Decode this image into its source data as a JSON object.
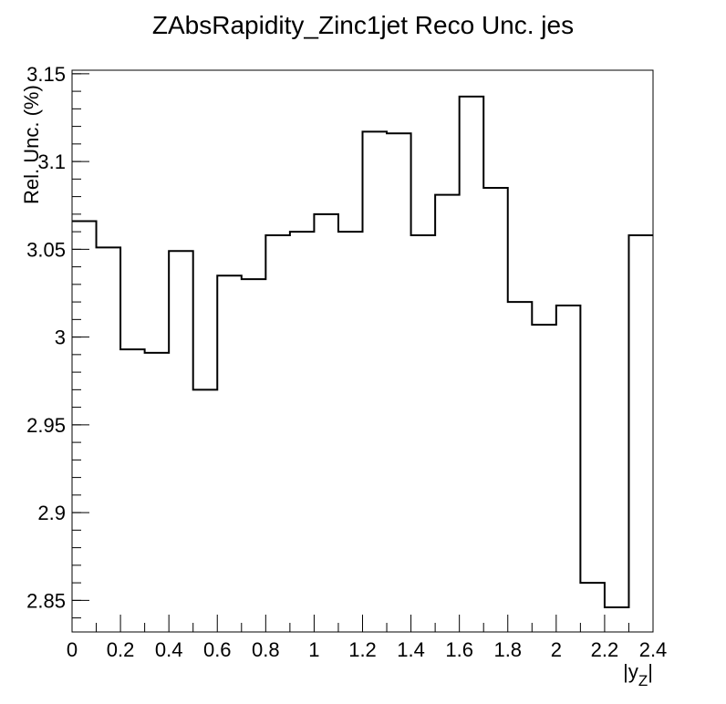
{
  "chart_data": {
    "type": "step",
    "title": "ZAbsRapidity_Zinc1jet Reco Unc. jes",
    "xlabel_main": "|y",
    "xlabel_sub": "Z",
    "xlabel_end": "|",
    "ylabel": "Rel. Unc. (%)",
    "xlim": [
      0,
      2.4
    ],
    "ylim": [
      2.832,
      3.152
    ],
    "x_ticks": [
      0,
      0.2,
      0.4,
      0.6,
      0.8,
      1,
      1.2,
      1.4,
      1.6,
      1.8,
      2,
      2.2,
      2.4
    ],
    "x_tick_labels": [
      "0",
      "0.2",
      "0.4",
      "0.6",
      "0.8",
      "1",
      "1.2",
      "1.4",
      "1.6",
      "1.8",
      "2",
      "2.2",
      "2.4"
    ],
    "y_ticks": [
      2.85,
      2.9,
      2.95,
      3,
      3.05,
      3.1,
      3.15
    ],
    "y_tick_labels": [
      "2.85",
      "2.9",
      "2.95",
      "3",
      "3.05",
      "3.1",
      "3.15"
    ],
    "bin_edges": [
      0,
      0.1,
      0.2,
      0.3,
      0.4,
      0.5,
      0.6,
      0.7,
      0.8,
      0.9,
      1.0,
      1.1,
      1.2,
      1.3,
      1.4,
      1.5,
      1.6,
      1.7,
      1.8,
      1.9,
      2.0,
      2.1,
      2.2,
      2.3,
      2.4
    ],
    "values": [
      3.066,
      3.051,
      2.993,
      2.991,
      3.049,
      2.97,
      3.035,
      3.033,
      3.058,
      3.06,
      3.07,
      3.06,
      3.117,
      3.116,
      3.058,
      3.081,
      3.137,
      3.085,
      3.02,
      3.007,
      3.018,
      2.86,
      2.846,
      3.058
    ],
    "grid": false,
    "legend": "none"
  }
}
